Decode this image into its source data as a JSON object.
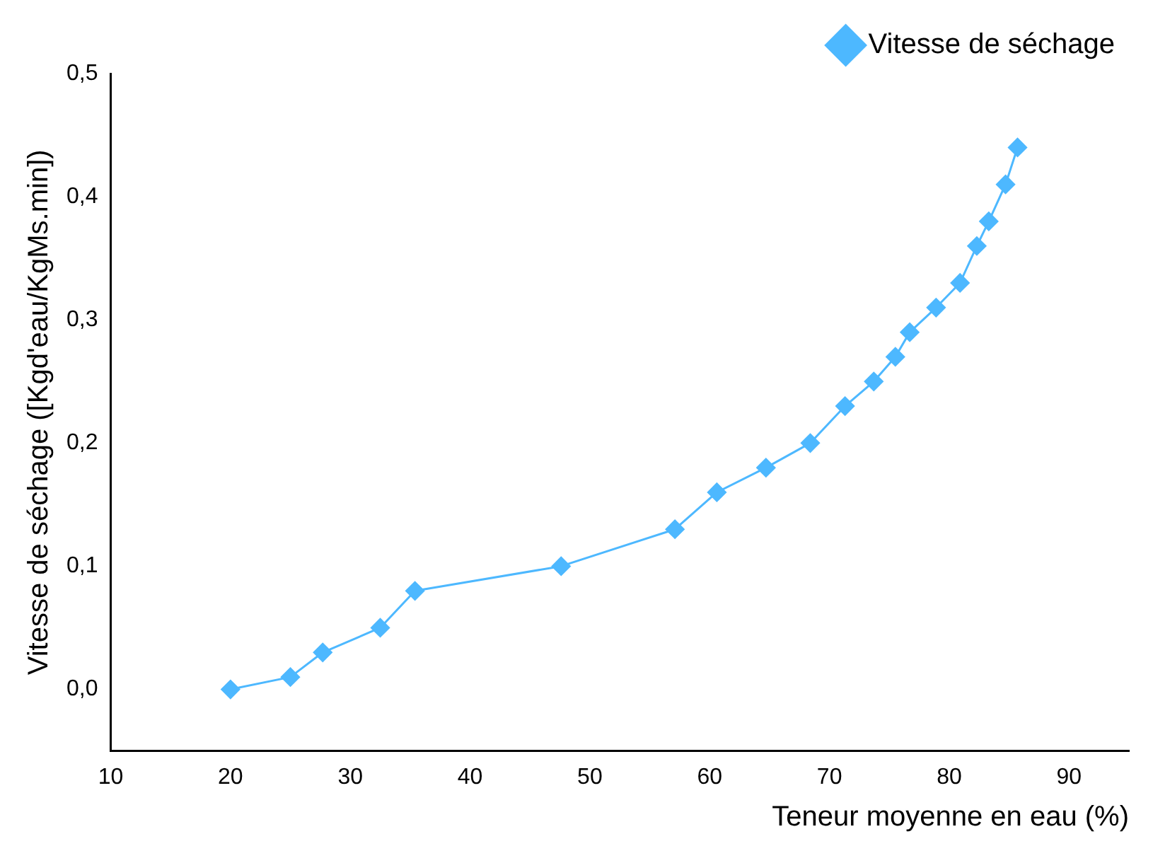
{
  "chart_data": {
    "type": "line",
    "xlabel": "Teneur moyenne en eau (%)",
    "ylabel": "Vitesse de séchage ([Kgd'eau/KgMs.min])",
    "x": [
      20,
      25,
      27.7,
      32.5,
      35.4,
      47.6,
      57.1,
      60.6,
      64.7,
      68.4,
      71.3,
      73.7,
      75.5,
      76.7,
      78.9,
      80.9,
      82.3,
      83.3,
      84.7,
      85.7
    ],
    "series": [
      {
        "name": "Vitesse de séchage",
        "color": "#4db8ff",
        "values": [
          0,
          0.01,
          0.03,
          0.05,
          0.08,
          0.1,
          0.13,
          0.16,
          0.18,
          0.2,
          0.23,
          0.25,
          0.27,
          0.29,
          0.31,
          0.33,
          0.36,
          0.38,
          0.41,
          0.44
        ]
      }
    ],
    "xlim": [
      10,
      95
    ],
    "xticks": [
      10,
      20,
      30,
      40,
      50,
      60,
      70,
      80,
      90
    ],
    "ylim": [
      -0.05,
      0.5
    ],
    "yticks": [
      {
        "value": 0,
        "label": "0,0"
      },
      {
        "value": 0.1,
        "label": "0,1"
      },
      {
        "value": 0.2,
        "label": "0,2"
      },
      {
        "value": 0.3,
        "label": "0,3"
      },
      {
        "value": 0.4,
        "label": "0,4"
      },
      {
        "value": 0.5,
        "label": "0,5"
      }
    ],
    "grid": false,
    "legend": "top right",
    "marker": "diamond",
    "line_style": "solid"
  }
}
